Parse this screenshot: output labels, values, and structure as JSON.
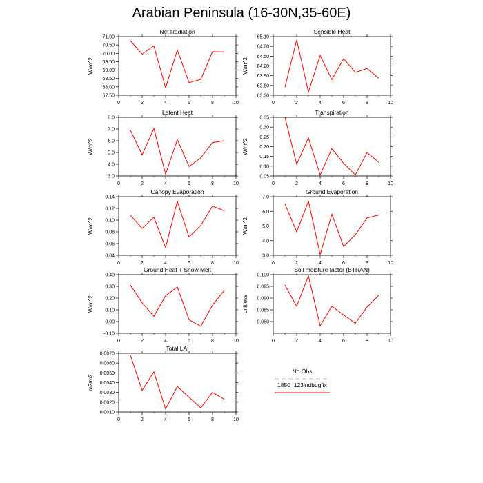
{
  "page": {
    "title": "Arabian Peninsula (16-30N,35-60E)"
  },
  "legend": {
    "entries": [
      {
        "name": "No Obs",
        "color": "#bbbbcc",
        "dash": true
      },
      {
        "name": "1850_123lndbugfix",
        "color": "#ff0000",
        "dash": false
      }
    ]
  },
  "chart_data": [
    {
      "type": "line",
      "title": "Net Radiation",
      "ylabel": "W/m^2",
      "xlim": [
        0,
        10
      ],
      "ylim": [
        67.5,
        71.0
      ],
      "xticks": [
        "0",
        "2",
        "4",
        "6",
        "8",
        "10"
      ],
      "yticks": [
        "67.50",
        "68.00",
        "68.50",
        "69.00",
        "69.50",
        "70.00",
        "70.50",
        "71.00"
      ],
      "series": [
        {
          "color": "#ff0000",
          "x": [
            1,
            2,
            3,
            4,
            5,
            6,
            7,
            8,
            9
          ],
          "y": [
            70.75,
            69.95,
            70.45,
            67.95,
            70.2,
            68.25,
            68.45,
            70.1,
            70.08
          ]
        }
      ]
    },
    {
      "type": "line",
      "title": "Sensible Heat",
      "ylabel": "W/m^2",
      "xlim": [
        0,
        10
      ],
      "ylim": [
        63.3,
        65.1
      ],
      "xticks": [
        "0",
        "2",
        "4",
        "6",
        "8",
        "10"
      ],
      "yticks": [
        "63.30",
        "63.60",
        "63.90",
        "64.20",
        "64.50",
        "64.80",
        "65.10"
      ],
      "series": [
        {
          "color": "#ff0000",
          "x": [
            1,
            2,
            3,
            4,
            5,
            6,
            7,
            8,
            9
          ],
          "y": [
            63.55,
            65.0,
            63.4,
            64.52,
            63.78,
            64.42,
            64.0,
            64.12,
            63.82
          ]
        }
      ]
    },
    {
      "type": "line",
      "title": "Latent Heat",
      "ylabel": "W/m^2",
      "xlim": [
        0,
        10
      ],
      "ylim": [
        3.0,
        8.0
      ],
      "xticks": [
        "0",
        "2",
        "4",
        "6",
        "8",
        "10"
      ],
      "yticks": [
        "3.0",
        "4.0",
        "5.0",
        "6.0",
        "7.0",
        "8.0"
      ],
      "series": [
        {
          "color": "#ff0000",
          "x": [
            1,
            2,
            3,
            4,
            5,
            6,
            7,
            8,
            9
          ],
          "y": [
            6.9,
            4.8,
            7.05,
            3.15,
            6.1,
            3.8,
            4.55,
            5.85,
            6.0
          ]
        }
      ]
    },
    {
      "type": "line",
      "title": "Transpiration",
      "ylabel": "W/m^2",
      "xlim": [
        0,
        10
      ],
      "ylim": [
        0.05,
        0.35
      ],
      "xticks": [
        "0",
        "2",
        "4",
        "6",
        "8",
        "10"
      ],
      "yticks": [
        "0.05",
        "0.10",
        "0.15",
        "0.20",
        "0.25",
        "0.30",
        "0.35"
      ],
      "series": [
        {
          "color": "#ff0000",
          "x": [
            1,
            2,
            3,
            4,
            5,
            6,
            7,
            8,
            9
          ],
          "y": [
            0.35,
            0.11,
            0.245,
            0.055,
            0.19,
            0.115,
            0.055,
            0.17,
            0.12
          ]
        }
      ]
    },
    {
      "type": "line",
      "title": "Canopy Evaporation",
      "ylabel": "W/m^2",
      "xlim": [
        0,
        10
      ],
      "ylim": [
        0.04,
        0.14
      ],
      "xticks": [
        "0",
        "2",
        "4",
        "6",
        "8",
        "10"
      ],
      "yticks": [
        "0.04",
        "0.06",
        "0.08",
        "0.10",
        "0.12",
        "0.14"
      ],
      "series": [
        {
          "color": "#ff0000",
          "x": [
            1,
            2,
            3,
            4,
            5,
            6,
            7,
            8,
            9
          ],
          "y": [
            0.108,
            0.086,
            0.105,
            0.053,
            0.132,
            0.071,
            0.091,
            0.124,
            0.116
          ]
        }
      ]
    },
    {
      "type": "line",
      "title": "Ground Evaporation",
      "ylabel": "W/m^2",
      "xlim": [
        0,
        10
      ],
      "ylim": [
        3.0,
        7.0
      ],
      "xticks": [
        "0",
        "2",
        "4",
        "6",
        "8",
        "10"
      ],
      "yticks": [
        "3.0",
        "4.0",
        "5.0",
        "6.0",
        "7.0"
      ],
      "series": [
        {
          "color": "#ff0000",
          "x": [
            1,
            2,
            3,
            4,
            5,
            6,
            7,
            8,
            9
          ],
          "y": [
            6.5,
            4.6,
            6.7,
            3.05,
            5.8,
            3.6,
            4.4,
            5.55,
            5.75
          ]
        }
      ]
    },
    {
      "type": "line",
      "title": "Ground Heat + Snow Melt",
      "ylabel": "W/m^2",
      "xlim": [
        0,
        10
      ],
      "ylim": [
        -0.1,
        0.4
      ],
      "xticks": [
        "0",
        "2",
        "4",
        "6",
        "8",
        "10"
      ],
      "yticks": [
        "-0.10",
        "0.00",
        "0.10",
        "0.20",
        "0.30",
        "0.40"
      ],
      "series": [
        {
          "color": "#ff0000",
          "x": [
            1,
            2,
            3,
            4,
            5,
            6,
            7,
            8,
            9
          ],
          "y": [
            0.31,
            0.16,
            0.045,
            0.22,
            0.295,
            0.015,
            -0.04,
            0.14,
            0.265
          ]
        }
      ]
    },
    {
      "type": "line",
      "title": "Soil moisture factor (BTRAN)",
      "ylabel": "unitless",
      "xlim": [
        0,
        10
      ],
      "ylim": [
        0.075,
        0.1
      ],
      "xticks": [
        "0",
        "2",
        "4",
        "6",
        "8",
        "10"
      ],
      "yticks": [
        "0.080",
        "0.085",
        "0.090",
        "0.095",
        "0.100"
      ],
      "series": [
        {
          "color": "#ff0000",
          "x": [
            1,
            2,
            3,
            4,
            5,
            6,
            7,
            8,
            9
          ],
          "y": [
            0.0955,
            0.0865,
            0.0995,
            0.0782,
            0.0865,
            0.0828,
            0.0792,
            0.0862,
            0.0912
          ]
        }
      ]
    },
    {
      "type": "line",
      "title": "Total LAI",
      "ylabel": "m2/m2",
      "xlim": [
        0,
        10
      ],
      "ylim": [
        0.001,
        0.007
      ],
      "xticks": [
        "0",
        "2",
        "4",
        "6",
        "8",
        "10"
      ],
      "yticks": [
        "0.0010",
        "0.0020",
        "0.0030",
        "0.0040",
        "0.0050",
        "0.0060",
        "0.0070"
      ],
      "series": [
        {
          "color": "#ff0000",
          "x": [
            1,
            2,
            3,
            4,
            5,
            6,
            7,
            8,
            9
          ],
          "y": [
            0.0068,
            0.0032,
            0.0051,
            0.0013,
            0.0036,
            0.0025,
            0.0014,
            0.003,
            0.0023
          ]
        }
      ]
    }
  ]
}
